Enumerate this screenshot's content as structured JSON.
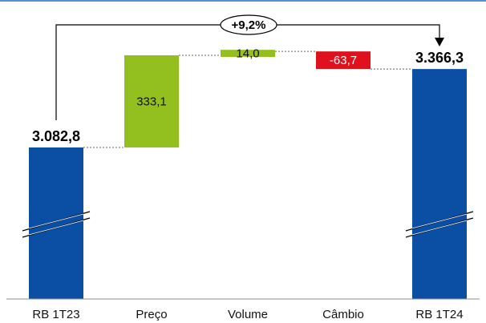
{
  "chart_data": {
    "type": "waterfall",
    "categories": [
      "RB 1T23",
      "Preço",
      "Volume",
      "Câmbio",
      "RB 1T24"
    ],
    "values": [
      3082.8,
      333.1,
      14.0,
      -63.7,
      3366.3
    ],
    "kinds": [
      "total",
      "delta",
      "delta",
      "delta",
      "total"
    ],
    "data_labels": [
      "3.082,8",
      "333,1",
      "14,0",
      "-63,7",
      "3.366,3"
    ],
    "growth_label": "+9,2%",
    "axis_break": true,
    "colors": {
      "total": "#0a4fa3",
      "increase": "#93bf1f",
      "decrease": "#e0101d",
      "top_rule": "#5b8fd0"
    }
  }
}
